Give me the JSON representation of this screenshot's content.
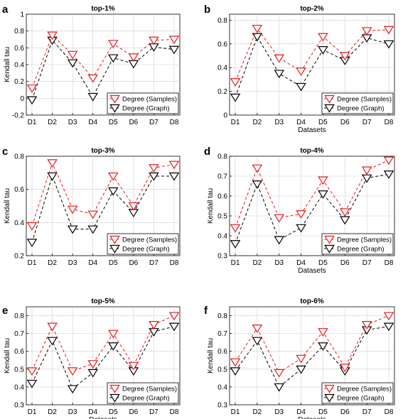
{
  "colors": {
    "samples": "#e8191c",
    "graph": "#000000",
    "grid": "#cfcfcf"
  },
  "chart_data": [
    {
      "type": "line",
      "panel": "a",
      "title": "top-1%",
      "x": [
        "D1",
        "D2",
        "D3",
        "D4",
        "D5",
        "D6",
        "D7",
        "D8"
      ],
      "xlabel": "",
      "ylabel": "Kendall tau",
      "ylim": [
        -0.2,
        1
      ],
      "yticks": [
        "-0.2",
        "0",
        "0.2",
        "0.4",
        "0.6",
        "0.8",
        "1"
      ],
      "ytick_values": [
        -0.2,
        0,
        0.2,
        0.4,
        0.6,
        0.8,
        1
      ],
      "grid": true,
      "legend": "bottom-right",
      "series": [
        {
          "name": "Degree (Samples)",
          "color": "#e8191c",
          "marker": "triangle-down",
          "values": [
            0.12,
            0.75,
            0.52,
            0.24,
            0.65,
            0.49,
            0.69,
            0.7
          ]
        },
        {
          "name": "Degree (Graph)",
          "color": "#000000",
          "marker": "triangle-down",
          "values": [
            -0.02,
            0.69,
            0.42,
            0.02,
            0.48,
            0.41,
            0.61,
            0.58
          ]
        }
      ]
    },
    {
      "type": "line",
      "panel": "b",
      "title": "top-2%",
      "x": [
        "D1",
        "D2",
        "D3",
        "D4",
        "D5",
        "D6",
        "D7",
        "D8"
      ],
      "xlabel": "Datasets",
      "ylabel": "",
      "ylim": [
        0,
        0.85
      ],
      "yticks": [
        "0",
        "0.2",
        "0.4",
        "0.6",
        "0.8"
      ],
      "ytick_values": [
        0,
        0.2,
        0.4,
        0.6,
        0.8
      ],
      "grid": true,
      "legend": "bottom-right",
      "series": [
        {
          "name": "Degree (Samples)",
          "color": "#e8191c",
          "marker": "triangle-down",
          "values": [
            0.28,
            0.73,
            0.48,
            0.37,
            0.66,
            0.5,
            0.71,
            0.72
          ]
        },
        {
          "name": "Degree (Graph)",
          "color": "#000000",
          "marker": "triangle-down",
          "values": [
            0.15,
            0.66,
            0.35,
            0.24,
            0.55,
            0.46,
            0.65,
            0.6
          ]
        }
      ]
    },
    {
      "type": "line",
      "panel": "c",
      "title": "top-3%",
      "x": [
        "D1",
        "D2",
        "D3",
        "D4",
        "D5",
        "D6",
        "D7",
        "D8"
      ],
      "xlabel": "",
      "ylabel": "Kendall tau",
      "ylim": [
        0.2,
        0.8
      ],
      "yticks": [
        "0.2",
        "0.4",
        "0.6",
        "0.8"
      ],
      "ytick_values": [
        0.2,
        0.4,
        0.6,
        0.8
      ],
      "grid": true,
      "legend": "bottom-right",
      "series": [
        {
          "name": "Degree (Samples)",
          "color": "#e8191c",
          "marker": "triangle-down",
          "values": [
            0.38,
            0.76,
            0.48,
            0.45,
            0.68,
            0.5,
            0.73,
            0.75
          ]
        },
        {
          "name": "Degree (Graph)",
          "color": "#000000",
          "marker": "triangle-down",
          "values": [
            0.28,
            0.68,
            0.36,
            0.36,
            0.59,
            0.46,
            0.68,
            0.68
          ]
        }
      ]
    },
    {
      "type": "line",
      "panel": "d",
      "title": "top-4%",
      "x": [
        "D1",
        "D2",
        "D3",
        "D4",
        "D5",
        "D6",
        "D7",
        "D8"
      ],
      "xlabel": "Datasets",
      "ylabel": "Kendall tau",
      "ylim": [
        0.3,
        0.8
      ],
      "yticks": [
        "0.3",
        "0.4",
        "0.5",
        "0.6",
        "0.7",
        "0.8"
      ],
      "ytick_values": [
        0.3,
        0.4,
        0.5,
        0.6,
        0.7,
        0.8
      ],
      "grid": true,
      "legend": "bottom-right",
      "series": [
        {
          "name": "Degree (Samples)",
          "color": "#e8191c",
          "marker": "triangle-down",
          "values": [
            0.44,
            0.74,
            0.49,
            0.51,
            0.68,
            0.52,
            0.73,
            0.78
          ]
        },
        {
          "name": "Degree (Graph)",
          "color": "#000000",
          "marker": "triangle-down",
          "values": [
            0.36,
            0.66,
            0.38,
            0.44,
            0.61,
            0.48,
            0.69,
            0.71
          ]
        }
      ]
    },
    {
      "type": "line",
      "panel": "e",
      "title": "top-5%",
      "x": [
        "D1",
        "D2",
        "D3",
        "D4",
        "D5",
        "D6",
        "D7",
        "D8"
      ],
      "xlabel": "Datasets",
      "ylabel": "Kendall tau",
      "ylim": [
        0.3,
        0.85
      ],
      "yticks": [
        "0.3",
        "0.4",
        "0.5",
        "0.6",
        "0.7",
        "0.8"
      ],
      "ytick_values": [
        0.3,
        0.4,
        0.5,
        0.6,
        0.7,
        0.8
      ],
      "grid": true,
      "legend": "bottom-right",
      "series": [
        {
          "name": "Degree (Samples)",
          "color": "#e8191c",
          "marker": "triangle-down",
          "values": [
            0.49,
            0.74,
            0.49,
            0.53,
            0.7,
            0.52,
            0.75,
            0.8
          ]
        },
        {
          "name": "Degree (Graph)",
          "color": "#000000",
          "marker": "triangle-down",
          "values": [
            0.42,
            0.66,
            0.39,
            0.48,
            0.63,
            0.49,
            0.71,
            0.74
          ]
        }
      ]
    },
    {
      "type": "line",
      "panel": "f",
      "title": "top-6%",
      "x": [
        "D1",
        "D2",
        "D3",
        "D4",
        "D5",
        "D6",
        "D7",
        "D8"
      ],
      "xlabel": "Datasets",
      "ylabel": "Kendall tau",
      "ylim": [
        0.3,
        0.85
      ],
      "yticks": [
        "0.3",
        "0.4",
        "0.5",
        "0.6",
        "0.7",
        "0.8"
      ],
      "ytick_values": [
        0.3,
        0.4,
        0.5,
        0.6,
        0.7,
        0.8
      ],
      "grid": true,
      "legend": "bottom-right",
      "series": [
        {
          "name": "Degree (Samples)",
          "color": "#e8191c",
          "marker": "triangle-down",
          "values": [
            0.54,
            0.73,
            0.48,
            0.56,
            0.71,
            0.51,
            0.75,
            0.8
          ]
        },
        {
          "name": "Degree (Graph)",
          "color": "#000000",
          "marker": "triangle-down",
          "values": [
            0.49,
            0.66,
            0.4,
            0.5,
            0.63,
            0.49,
            0.72,
            0.74
          ]
        }
      ]
    }
  ]
}
